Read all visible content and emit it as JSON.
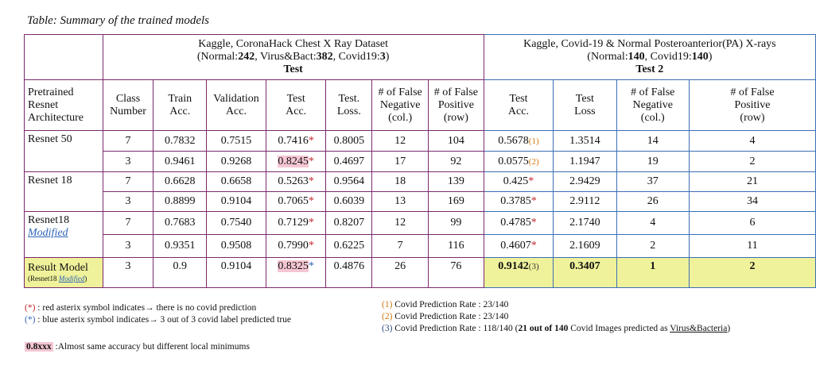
{
  "title": "Table: Summary of the trained models",
  "test1": {
    "dataset_line1": "Kaggle, CoronaHack Chest X Ray Dataset",
    "dataset_line2_a": "(Normal:",
    "normal": "242",
    "dataset_line2_b": ", Virus&Bact:",
    "virus": "382",
    "dataset_line2_c": ", Covid19:",
    "covid": "3",
    "dataset_line2_d": ")",
    "label": "Test"
  },
  "test2": {
    "dataset_line1": "Kaggle, Covid-19 & Normal Posteroanterior(PA) X-rays",
    "dataset_line2_a": "(Normal:",
    "normal": "140",
    "dataset_line2_b": ", Covid19:",
    "covid": "140",
    "dataset_line2_c": ")",
    "label": "Test 2"
  },
  "headers": {
    "arch": [
      "Pretrained",
      "Resnet",
      "Architecture"
    ],
    "class": [
      "Class",
      "Number"
    ],
    "train": [
      "Train",
      "Acc."
    ],
    "val": [
      "Validation",
      "Acc."
    ],
    "test_acc": [
      "Test",
      "Acc."
    ],
    "test_loss": [
      "Test.",
      "Loss."
    ],
    "fn": [
      "# of False",
      "Negative",
      "(col.)"
    ],
    "fp": [
      "# of False",
      "Positive",
      "(row)"
    ],
    "t2_acc": [
      "Test",
      "Acc."
    ],
    "t2_loss": [
      "Test",
      "Loss"
    ],
    "t2_fn": [
      "# of False",
      "Negative",
      "(col.)"
    ],
    "t2_fp": [
      "# of False",
      "Positive",
      "(row)"
    ]
  },
  "groups": {
    "resnet50": "Resnet 50",
    "resnet18": "Resnet 18",
    "resnet18mod_a": "Resnet18",
    "resnet18mod_b": "Modified",
    "result_a": "Result Model",
    "result_b1": "(Resnet18 ",
    "result_b2": "Modified",
    "result_b3": ")"
  },
  "rows": [
    {
      "cls": "7",
      "train": "0.7832",
      "val": "0.7515",
      "test": "0.7416",
      "mark": "*",
      "loss": "0.8005",
      "fn": "12",
      "fp": "104",
      "t2acc": "0.5678",
      "t2mark": "(1)",
      "t2loss": "1.3514",
      "t2fn": "14",
      "t2fp": "4"
    },
    {
      "cls": "3",
      "train": "0.9461",
      "val": "0.9268",
      "test": "0.8245",
      "mark": "*",
      "loss": "0.4697",
      "fn": "17",
      "fp": "92",
      "t2acc": "0.0575",
      "t2mark": "(2)",
      "t2loss": "1.1947",
      "t2fn": "19",
      "t2fp": "2"
    },
    {
      "cls": "7",
      "train": "0.6628",
      "val": "0.6658",
      "test": "0.5263",
      "mark": "*",
      "loss": "0.9564",
      "fn": "18",
      "fp": "139",
      "t2acc": "0.425",
      "t2mark": "*",
      "t2loss": "2.9429",
      "t2fn": "37",
      "t2fp": "21"
    },
    {
      "cls": "3",
      "train": "0.8899",
      "val": "0.9104",
      "test": "0.7065",
      "mark": "*",
      "loss": "0.6039",
      "fn": "13",
      "fp": "169",
      "t2acc": "0.3785",
      "t2mark": "*",
      "t2loss": "2.9112",
      "t2fn": "26",
      "t2fp": "34"
    },
    {
      "cls": "7",
      "train": "0.7683",
      "val": "0.7540",
      "test": "0.7129",
      "mark": "*",
      "loss": "0.8207",
      "fn": "12",
      "fp": "99",
      "t2acc": "0.4785",
      "t2mark": "*",
      "t2loss": "2.1740",
      "t2fn": "4",
      "t2fp": "6"
    },
    {
      "cls": "3",
      "train": "0.9351",
      "val": "0.9508",
      "test": "0.7990",
      "mark": "*",
      "loss": "0.6225",
      "fn": "7",
      "fp": "116",
      "t2acc": "0.4607",
      "t2mark": "*",
      "t2loss": "2.1609",
      "t2fn": "2",
      "t2fp": "11"
    },
    {
      "cls": "3",
      "train": "0.9",
      "val": "0.9104",
      "test": "0.8325",
      "mark": "*",
      "loss": "0.4876",
      "fn": "26",
      "fp": "76",
      "t2acc": "0.9142",
      "t2mark": "(3)",
      "t2loss": "0.3407",
      "t2fn": "1",
      "t2fp": "2"
    }
  ],
  "legend": {
    "red_mark": "(*)",
    "red_text": " : red asterix symbol indicates→ there is no covid prediction",
    "blue_mark": "(*)",
    "blue_text": " : blue asterix symbol indicates→ 3 out of 3 covid label predicted true",
    "swatch": "0.8xxx",
    "swatch_text": " :Almost same accuracy but different local minimums",
    "rate1_mark": "(1)",
    "rate1_text": " Covid Prediction Rate : 23/140",
    "rate2_mark": "(2)",
    "rate2_text": " Covid Prediction Rate : 23/140",
    "rate3_mark": "(3)",
    "rate3_a": " Covid Prediction Rate : 118/140 (",
    "rate3_b": "21 out of 140",
    "rate3_c": " Covid Images predicted as ",
    "rate3_d": "Virus&Bacteria",
    "rate3_e": ")"
  },
  "colors": {
    "border_test": "#7a2a6e",
    "border_test2": "#3b6fb5",
    "pink": "#f5c6d3",
    "yellow": "#eff29a",
    "red": "#c0272d",
    "blue": "#2e63b8",
    "orange": "#d0780d"
  }
}
